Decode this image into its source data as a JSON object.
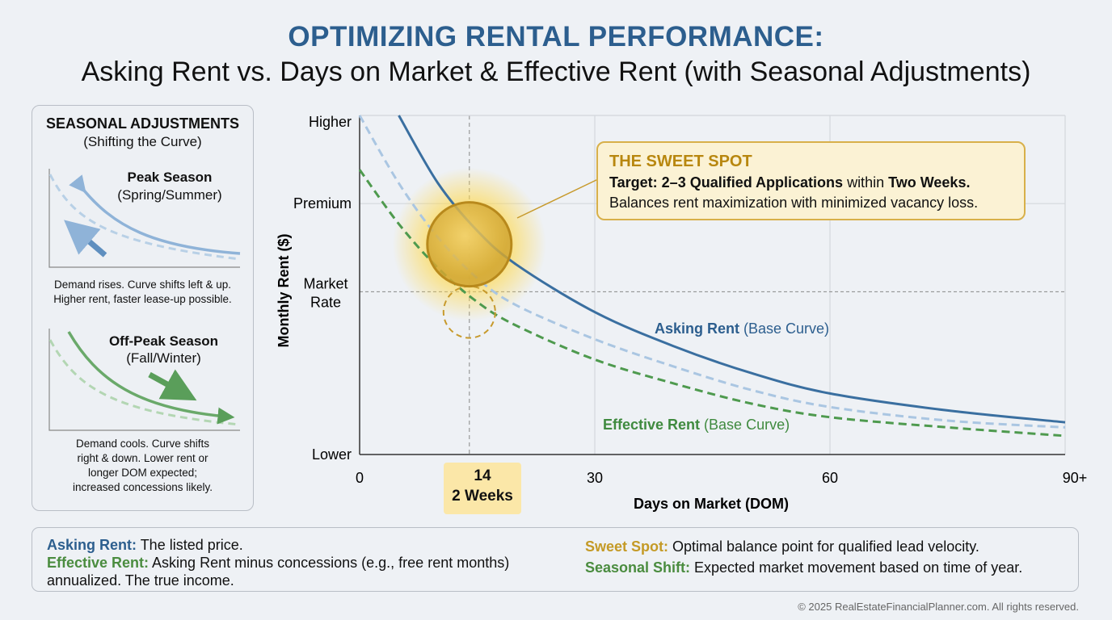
{
  "header": {
    "title": "OPTIMIZING RENTAL PERFORMANCE:",
    "subtitle": "Asking Rent vs. Days on Market & Effective Rent (with Seasonal Adjustments)"
  },
  "seasonal_panel": {
    "title": "SEASONAL ADJUSTMENTS",
    "subtitle": "(Shifting the Curve)",
    "peak": {
      "title": "Peak Season",
      "subtitle": "(Spring/Summer)",
      "desc1": "Demand rises. Curve shifts left & up.",
      "desc2": "Higher rent, faster lease-up possible."
    },
    "offpeak": {
      "title": "Off-Peak Season",
      "subtitle": "(Fall/Winter)",
      "desc1": "Demand cools. Curve shifts",
      "desc2": "right & down. Lower rent or",
      "desc3": "longer DOM expected;",
      "desc4": "increased concessions likely."
    }
  },
  "callout": {
    "title": "THE SWEET SPOT",
    "line1_a": "Target: 2–3 Qualified Applications",
    "line1_b": " within ",
    "line1_c": "Two Weeks.",
    "line2": "Balances rent maximization with minimized vacancy loss."
  },
  "chart_data": {
    "type": "line",
    "title": "Asking Rent vs. Days on Market & Effective Rent",
    "xlabel": "Days on Market (DOM)",
    "ylabel": "Monthly Rent ($)",
    "xlim": [
      0,
      90
    ],
    "ylim": [
      0,
      100
    ],
    "x_ticks": [
      {
        "value": 0,
        "label": "0"
      },
      {
        "value": 14,
        "label": "14",
        "sublabel": "2 Weeks"
      },
      {
        "value": 30,
        "label": "30"
      },
      {
        "value": 60,
        "label": "60"
      },
      {
        "value": 90,
        "label": "90+"
      }
    ],
    "y_ticks": [
      {
        "value": 100,
        "label": "Higher"
      },
      {
        "value": 74,
        "label": "Premium"
      },
      {
        "value": 48,
        "label": "Market",
        "label2": "Rate"
      },
      {
        "value": 0,
        "label": "Lower"
      }
    ],
    "series": [
      {
        "name": "Asking Rent",
        "suffix": " (Base Curve)",
        "style": "solid",
        "color": "#3a6fa0",
        "x": [
          5,
          10,
          15,
          20,
          30,
          40,
          50,
          60,
          75,
          90
        ],
        "y": [
          100,
          80,
          66,
          56,
          42,
          32,
          24,
          18,
          13,
          9.5
        ]
      },
      {
        "name": "Asking Rent (shifted)",
        "style": "dashed",
        "color": "#aac6e2",
        "x": [
          0,
          5,
          10,
          15,
          20,
          30,
          40,
          50,
          60,
          75,
          90
        ],
        "y": [
          100,
          80,
          64,
          52,
          44,
          34,
          26,
          19,
          14,
          10,
          8
        ]
      },
      {
        "name": "Effective Rent",
        "suffix": " (Base Curve)",
        "style": "dashed",
        "color": "#4e9a4e",
        "x": [
          0,
          5,
          10,
          15,
          20,
          30,
          40,
          50,
          60,
          75,
          90
        ],
        "y": [
          84,
          68,
          55,
          45,
          38,
          28,
          21,
          15,
          11,
          8,
          5.5
        ]
      }
    ],
    "sweet_spot": {
      "x": 14,
      "y": 62,
      "ghost_y": 42
    },
    "reference_lines": {
      "vertical": 14,
      "horizontal": 48
    },
    "grid": true
  },
  "legend": {
    "asking_label": "Asking Rent:",
    "asking_desc": " The listed price.",
    "effective_label": "Effective Rent:",
    "effective_desc": " Asking Rent minus concessions (e.g., free rent months)",
    "effective_desc2": "annualized. The true income.",
    "sweet_label": "Sweet Spot:",
    "sweet_desc": " Optimal balance point for qualified lead velocity.",
    "seasonal_label": "Seasonal Shift:",
    "seasonal_desc": " Expected market movement based on time of year."
  },
  "footer": {
    "copyright": "© 2025 RealEstateFinancialPlanner.com. All rights reserved."
  },
  "colors": {
    "blue": "#2c5e8e",
    "green": "#4a8c3f",
    "gold": "#c49a26"
  }
}
